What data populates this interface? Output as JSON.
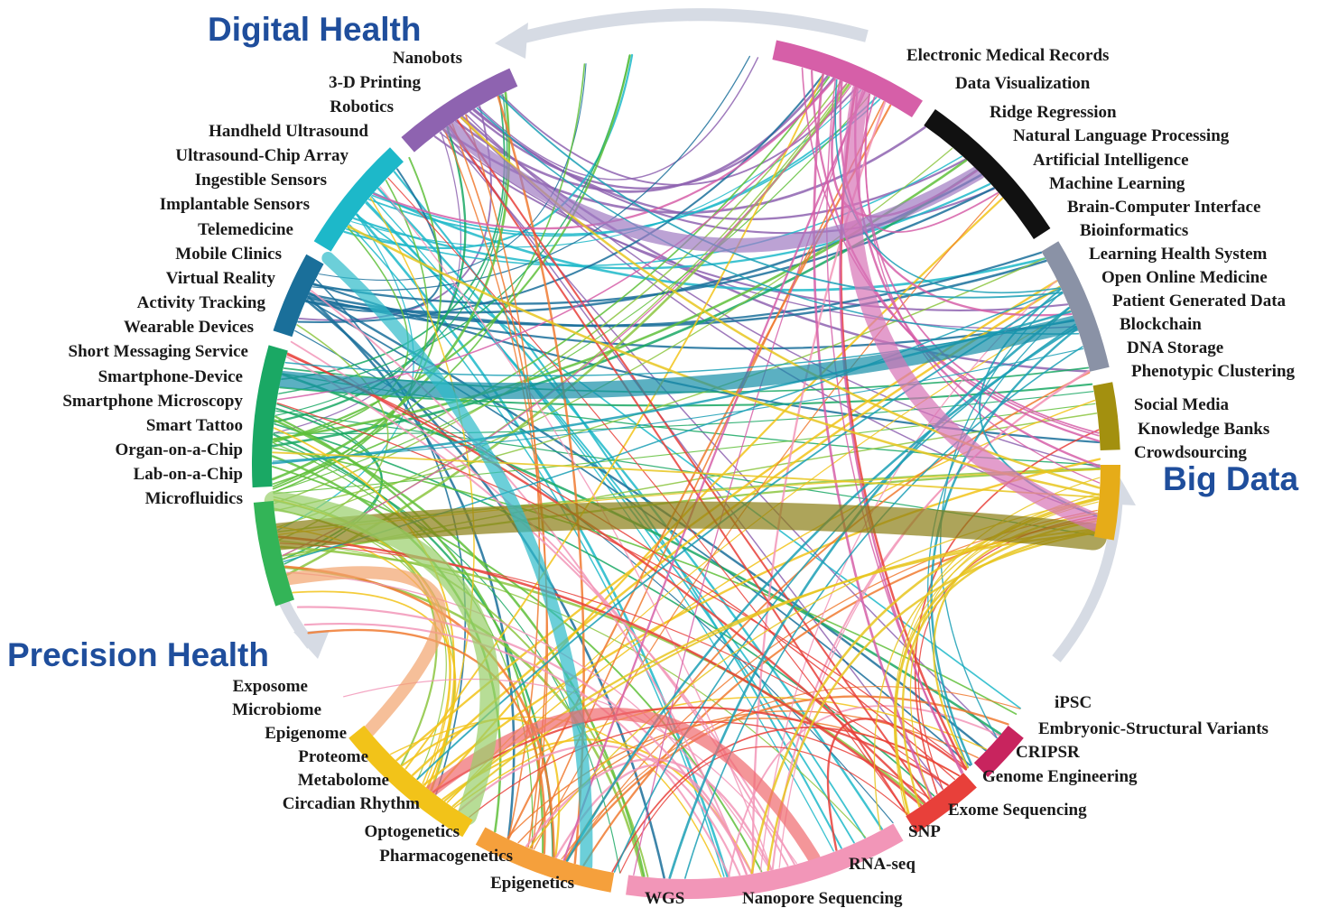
{
  "groups": [
    {
      "key": "digital_health",
      "title": "Digital Health",
      "color": "#1f4e9c"
    },
    {
      "key": "big_data",
      "title": "Big Data",
      "color": "#1f4e9c"
    },
    {
      "key": "precision_health",
      "title": "Precision Health",
      "color": "#1f4e9c"
    }
  ],
  "segment_colors": {
    "digital_a": "#8e63b0",
    "digital_b": "#1db8c9",
    "digital_c": "#1a6f9a",
    "digital_d": "#1aa864",
    "digital_e": "#33b457",
    "bigdata_a": "#d65fa8",
    "bigdata_b": "#111111",
    "bigdata_c": "#8a92a6",
    "bigdata_d": "#a3900f",
    "bigdata_e": "#e6ac18",
    "precision_a": "#f2c319",
    "precision_b": "#f5a03c",
    "precision_c": "#f296b8",
    "precision_d": "#e8403a",
    "precision_e": "#c8245e"
  },
  "nodes_left": [
    "Nanobots",
    "3-D Printing",
    "Robotics",
    "Handheld Ultrasound",
    "Ultrasound-Chip Array",
    "Ingestible Sensors",
    "Implantable Sensors",
    "Telemedicine",
    "Mobile Clinics",
    "Virtual Reality",
    "Activity Tracking",
    "Wearable Devices",
    "Short Messaging Service",
    "Smartphone-Device",
    "Smartphone Microscopy",
    "Smart Tattoo",
    "Organ-on-a-Chip",
    "Lab-on-a-Chip",
    "Microfluidics"
  ],
  "nodes_right": [
    "Electronic Medical Records",
    "Data Visualization",
    "Ridge Regression",
    "Natural Language Processing",
    "Artificial Intelligence",
    "Machine Learning",
    "Brain-Computer Interface",
    "Bioinformatics",
    "Learning Health System",
    "Open Online Medicine",
    "Patient Generated Data",
    "Blockchain",
    "DNA Storage",
    "Phenotypic Clustering",
    "Social Media",
    "Knowledge Banks",
    "Crowdsourcing"
  ],
  "nodes_bottom_left": [
    "Exposome",
    "Microbiome",
    "Epigenome",
    "Proteome",
    "Metabolome",
    "Circadian Rhythm",
    "Optogenetics",
    "Pharmacogenetics",
    "Epigenetics"
  ],
  "nodes_bottom_right": [
    "iPSC",
    "Embryonic-Structural Variants",
    "CRIPSR",
    "Genome Engineering",
    "Exome Sequencing",
    "SNP",
    "RNA-seq",
    "Nanopore Sequencing",
    "WGS"
  ]
}
